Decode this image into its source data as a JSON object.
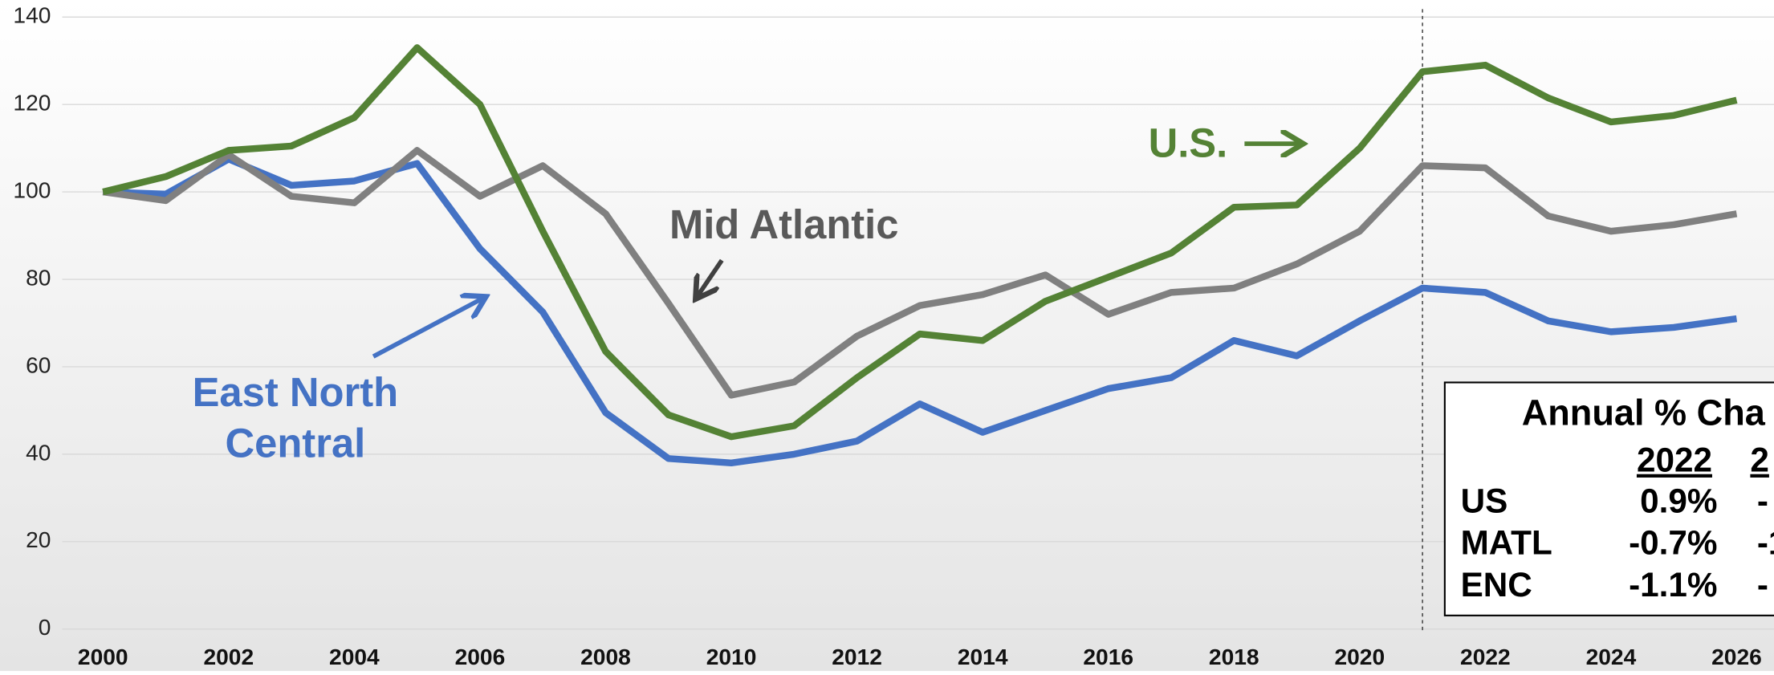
{
  "chart_data": {
    "type": "line",
    "x": [
      2000,
      2001,
      2002,
      2003,
      2004,
      2005,
      2006,
      2007,
      2008,
      2009,
      2010,
      2011,
      2012,
      2013,
      2014,
      2015,
      2016,
      2017,
      2018,
      2019,
      2020,
      2021,
      2022,
      2023,
      2024,
      2025,
      2026
    ],
    "series": [
      {
        "name": "U.S.",
        "color": "#548235",
        "values": [
          100,
          103.5,
          109.5,
          110.5,
          117,
          133,
          120,
          91,
          63.5,
          49,
          44,
          46.5,
          57.5,
          67.5,
          66,
          75,
          80.5,
          86,
          96.5,
          97,
          110,
          127.5,
          129,
          121.5,
          116,
          117.5,
          121
        ]
      },
      {
        "name": "Mid Atlantic",
        "color": "#808080",
        "values": [
          100,
          98,
          108.5,
          99,
          97.5,
          109.5,
          99,
          106,
          95,
          74.5,
          53.5,
          56.5,
          67,
          74,
          76.5,
          81,
          72,
          77,
          78,
          83.5,
          91,
          106,
          105.5,
          94.5,
          91,
          92.5,
          95
        ]
      },
      {
        "name": "East North Central",
        "color": "#4472c4",
        "values": [
          100,
          99.5,
          107.5,
          101.5,
          102.5,
          106.5,
          87,
          72.5,
          49.5,
          39,
          38,
          40,
          43,
          51.5,
          45,
          50,
          55,
          57.5,
          66,
          62.5,
          70.5,
          78,
          77,
          70.5,
          68,
          69,
          71
        ]
      }
    ],
    "xlim": [
      2000,
      2026
    ],
    "xticks": [
      2000,
      2002,
      2004,
      2006,
      2008,
      2010,
      2012,
      2014,
      2016,
      2018,
      2020,
      2022,
      2024,
      2026
    ],
    "ylim": [
      0,
      140
    ],
    "yticks": [
      0,
      20,
      40,
      60,
      80,
      100,
      120,
      140
    ],
    "grid": true,
    "vline": 2021
  },
  "inset_table": {
    "title": "Annual % Cha",
    "columns": [
      "2022",
      "2"
    ],
    "rows": [
      {
        "label": "US",
        "values": [
          "0.9%",
          "-"
        ]
      },
      {
        "label": "MATL",
        "values": [
          "-0.7%",
          "-1"
        ]
      },
      {
        "label": "ENC",
        "values": [
          "-1.1%",
          "-"
        ]
      }
    ]
  }
}
